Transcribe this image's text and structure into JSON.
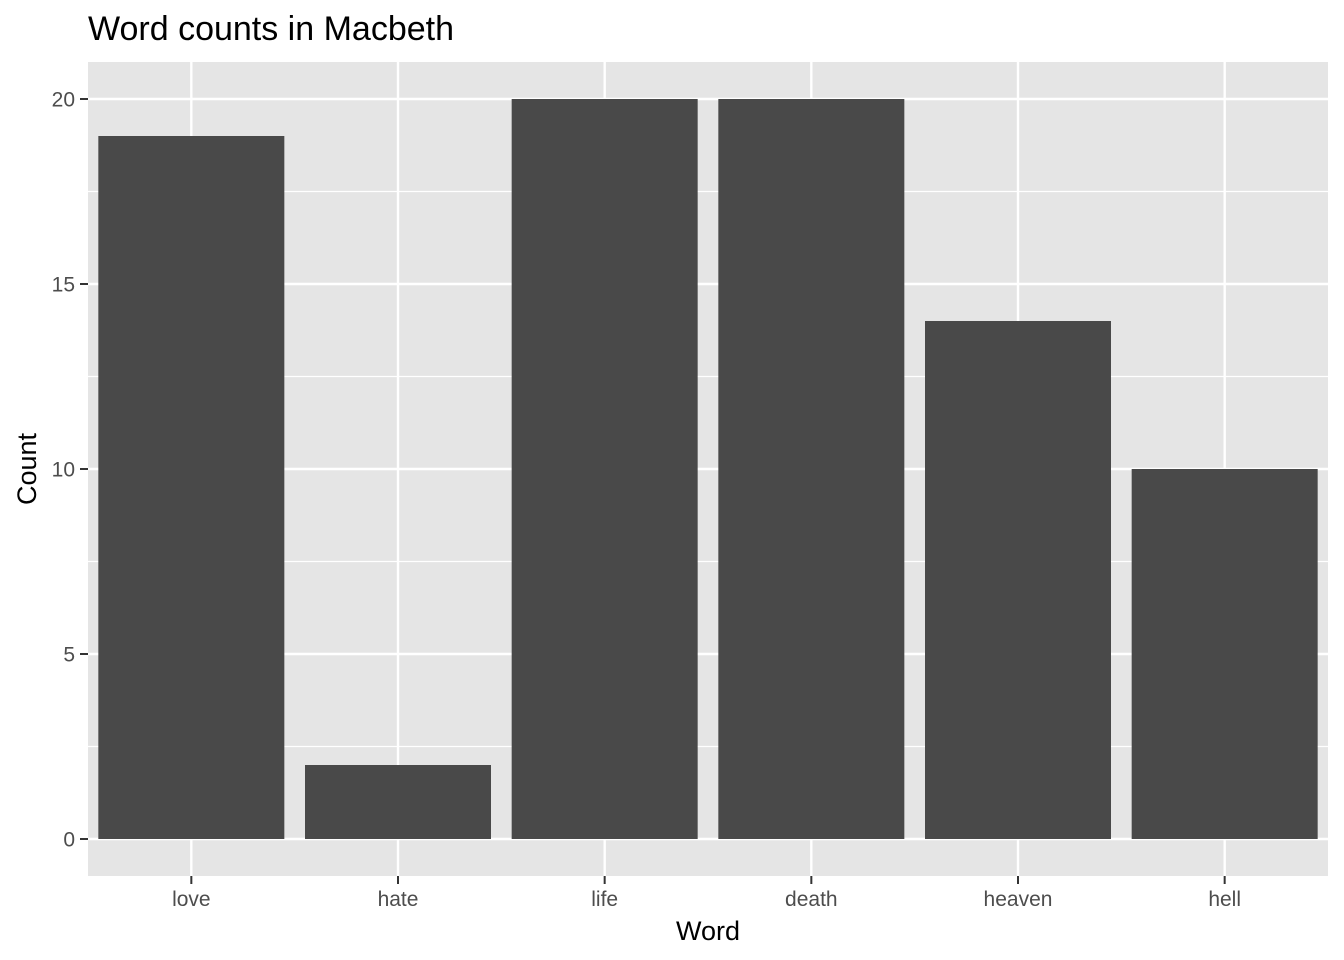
{
  "chart_data": {
    "type": "bar",
    "title": "Word counts in Macbeth",
    "xlabel": "Word",
    "ylabel": "Count",
    "categories": [
      "love",
      "hate",
      "life",
      "death",
      "heaven",
      "hell"
    ],
    "values": [
      19,
      2,
      20,
      20,
      14,
      10
    ],
    "ylim": [
      -1,
      21
    ],
    "yticks": [
      0,
      5,
      10,
      15,
      20
    ],
    "grid": true,
    "legend": "none",
    "colors": {
      "bar": "#494949",
      "panel": "#e5e5e5",
      "grid": "#ffffff",
      "tick_text": "#4d4d4d"
    }
  }
}
